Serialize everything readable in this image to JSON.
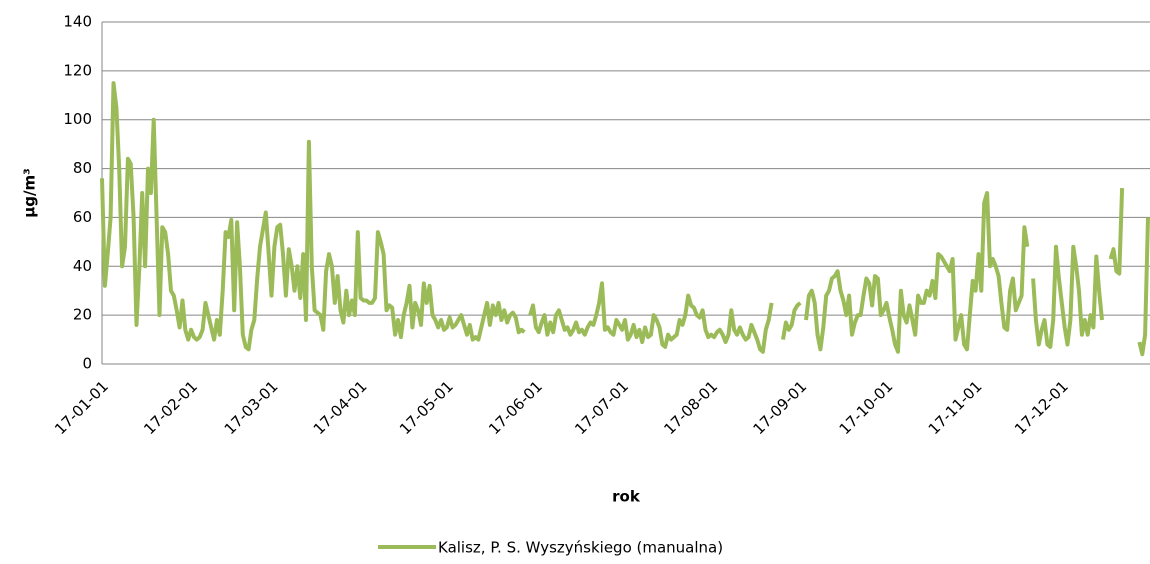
{
  "chart_data": {
    "type": "line",
    "x_label": "rok",
    "y_label": "µg/m³",
    "categories": [
      "17-01-01",
      null,
      null,
      null,
      null,
      null,
      null,
      null,
      null,
      null,
      null,
      null,
      null,
      null,
      null,
      null,
      null,
      null,
      null,
      null,
      null,
      null,
      null,
      null,
      null,
      null,
      null,
      null,
      null,
      null,
      null,
      "17-02-01",
      null,
      null,
      null,
      null,
      null,
      null,
      null,
      null,
      null,
      null,
      null,
      null,
      null,
      null,
      null,
      null,
      null,
      null,
      null,
      null,
      null,
      null,
      null,
      null,
      null,
      null,
      null,
      "17-03-01",
      null,
      null,
      null,
      null,
      null,
      null,
      null,
      null,
      null,
      null,
      null,
      null,
      null,
      null,
      null,
      null,
      null,
      null,
      null,
      null,
      null,
      null,
      null,
      null,
      null,
      null,
      null,
      null,
      null,
      null,
      "17-04-01",
      null,
      null,
      null,
      null,
      null,
      null,
      null,
      null,
      null,
      null,
      null,
      null,
      null,
      null,
      null,
      null,
      null,
      null,
      null,
      null,
      null,
      null,
      null,
      null,
      null,
      null,
      null,
      null,
      null,
      "17-05-01",
      null,
      null,
      null,
      null,
      null,
      null,
      null,
      null,
      null,
      null,
      null,
      null,
      null,
      null,
      null,
      null,
      null,
      null,
      null,
      null,
      null,
      null,
      null,
      null,
      null,
      null,
      null,
      null,
      null,
      null,
      "17-06-01",
      null,
      null,
      null,
      null,
      null,
      null,
      null,
      null,
      null,
      null,
      null,
      null,
      null,
      null,
      null,
      null,
      null,
      null,
      null,
      null,
      null,
      null,
      null,
      null,
      null,
      null,
      null,
      null,
      null,
      "17-07-01",
      null,
      null,
      null,
      null,
      null,
      null,
      null,
      null,
      null,
      null,
      null,
      null,
      null,
      null,
      null,
      null,
      null,
      null,
      null,
      null,
      null,
      null,
      null,
      null,
      null,
      null,
      null,
      null,
      null,
      null,
      "17-08-01",
      null,
      null,
      null,
      null,
      null,
      null,
      null,
      null,
      null,
      null,
      null,
      null,
      null,
      null,
      null,
      null,
      null,
      null,
      null,
      null,
      null,
      null,
      null,
      null,
      null,
      null,
      null,
      null,
      null,
      null,
      "17-09-01",
      null,
      null,
      null,
      null,
      null,
      null,
      null,
      null,
      null,
      null,
      null,
      null,
      null,
      null,
      null,
      null,
      null,
      null,
      null,
      null,
      null,
      null,
      null,
      null,
      null,
      null,
      null,
      null,
      null,
      "17-10-01",
      null,
      null,
      null,
      null,
      null,
      null,
      null,
      null,
      null,
      null,
      null,
      null,
      null,
      null,
      null,
      null,
      null,
      null,
      null,
      null,
      null,
      null,
      null,
      null,
      null,
      null,
      null,
      null,
      null,
      null,
      "17-11-01",
      null,
      null,
      null,
      null,
      null,
      null,
      null,
      null,
      null,
      null,
      null,
      null,
      null,
      null,
      null,
      null,
      null,
      null,
      null,
      null,
      null,
      null,
      null,
      null,
      null,
      null,
      null,
      null,
      null,
      "17-12-01",
      null,
      null,
      null,
      null,
      null,
      null,
      null,
      null,
      null,
      null,
      null,
      null,
      null,
      null,
      null,
      null,
      null,
      null,
      null,
      null,
      null,
      null,
      null,
      null,
      null,
      null,
      null,
      null,
      null,
      null
    ],
    "series": [
      {
        "name": "Kalisz, P. S. Wyszyńskiego (manualna)",
        "color": "#9bbb59",
        "values": [
          76,
          32,
          45,
          60,
          115,
          105,
          80,
          40,
          48,
          84,
          82,
          60,
          16,
          40,
          70,
          40,
          80,
          70,
          100,
          60,
          20,
          56,
          54,
          45,
          30,
          28,
          22,
          15,
          26,
          14,
          10,
          14,
          11,
          10,
          11,
          14,
          25,
          20,
          15,
          10,
          18,
          12,
          30,
          54,
          52,
          59,
          22,
          58,
          40,
          12,
          7,
          6,
          14,
          18,
          35,
          48,
          55,
          62,
          45,
          28,
          48,
          56,
          57,
          45,
          28,
          47,
          40,
          30,
          40,
          27,
          45,
          18,
          91,
          40,
          22,
          21,
          20,
          14,
          38,
          45,
          40,
          25,
          36,
          22,
          17,
          30,
          20,
          26,
          20,
          54,
          27,
          26,
          26,
          25,
          25,
          27,
          54,
          50,
          45,
          22,
          24,
          23,
          12,
          18,
          11,
          20,
          25,
          32,
          15,
          25,
          22,
          16,
          33,
          25,
          32,
          20,
          18,
          15,
          18,
          14,
          15,
          19,
          15,
          16,
          18,
          20,
          16,
          12,
          16,
          10,
          11,
          10,
          15,
          20,
          25,
          16,
          24,
          20,
          25,
          18,
          22,
          17,
          20,
          21,
          19,
          13,
          14,
          13,
          null,
          20,
          24,
          15,
          13,
          17,
          20,
          12,
          17,
          13,
          20,
          22,
          18,
          14,
          15,
          12,
          14,
          17,
          13,
          14,
          12,
          15,
          17,
          16,
          20,
          25,
          33,
          14,
          15,
          13,
          12,
          18,
          16,
          14,
          18,
          10,
          12,
          16,
          11,
          14,
          9,
          15,
          11,
          12,
          20,
          18,
          15,
          8,
          7,
          12,
          10,
          11,
          12,
          18,
          16,
          20,
          28,
          24,
          23,
          20,
          19,
          22,
          14,
          11,
          12,
          11,
          13,
          14,
          12,
          9,
          12,
          22,
          14,
          12,
          15,
          12,
          10,
          11,
          16,
          13,
          10,
          6,
          5,
          14,
          18,
          25,
          null,
          null,
          null,
          10,
          17,
          14,
          16,
          22,
          24,
          25,
          null,
          18,
          28,
          30,
          25,
          12,
          6,
          15,
          28,
          30,
          35,
          36,
          38,
          30,
          26,
          20,
          28,
          12,
          17,
          20,
          20,
          28,
          35,
          33,
          24,
          36,
          35,
          20,
          22,
          25,
          19,
          14,
          8,
          5,
          30,
          20,
          17,
          24,
          18,
          12,
          28,
          25,
          25,
          30,
          28,
          34,
          27,
          45,
          44,
          42,
          40,
          38,
          43,
          10,
          15,
          20,
          8,
          6,
          20,
          34,
          30,
          45,
          30,
          66,
          70,
          40,
          43,
          40,
          36,
          25,
          15,
          14,
          30,
          35,
          22,
          25,
          28,
          56,
          48,
          null,
          35,
          18,
          8,
          14,
          18,
          8,
          7,
          18,
          48,
          35,
          25,
          15,
          8,
          18,
          48,
          40,
          30,
          12,
          18,
          12,
          20,
          15,
          44,
          30,
          18,
          null,
          null,
          43,
          47,
          38,
          37,
          72,
          null,
          null,
          null,
          null,
          null,
          9,
          4,
          12,
          60
        ]
      }
    ],
    "ylim": [
      0,
      140
    ],
    "yticks": [
      0,
      20,
      40,
      60,
      80,
      100,
      120,
      140
    ],
    "grid": true,
    "legend": "bottom"
  }
}
